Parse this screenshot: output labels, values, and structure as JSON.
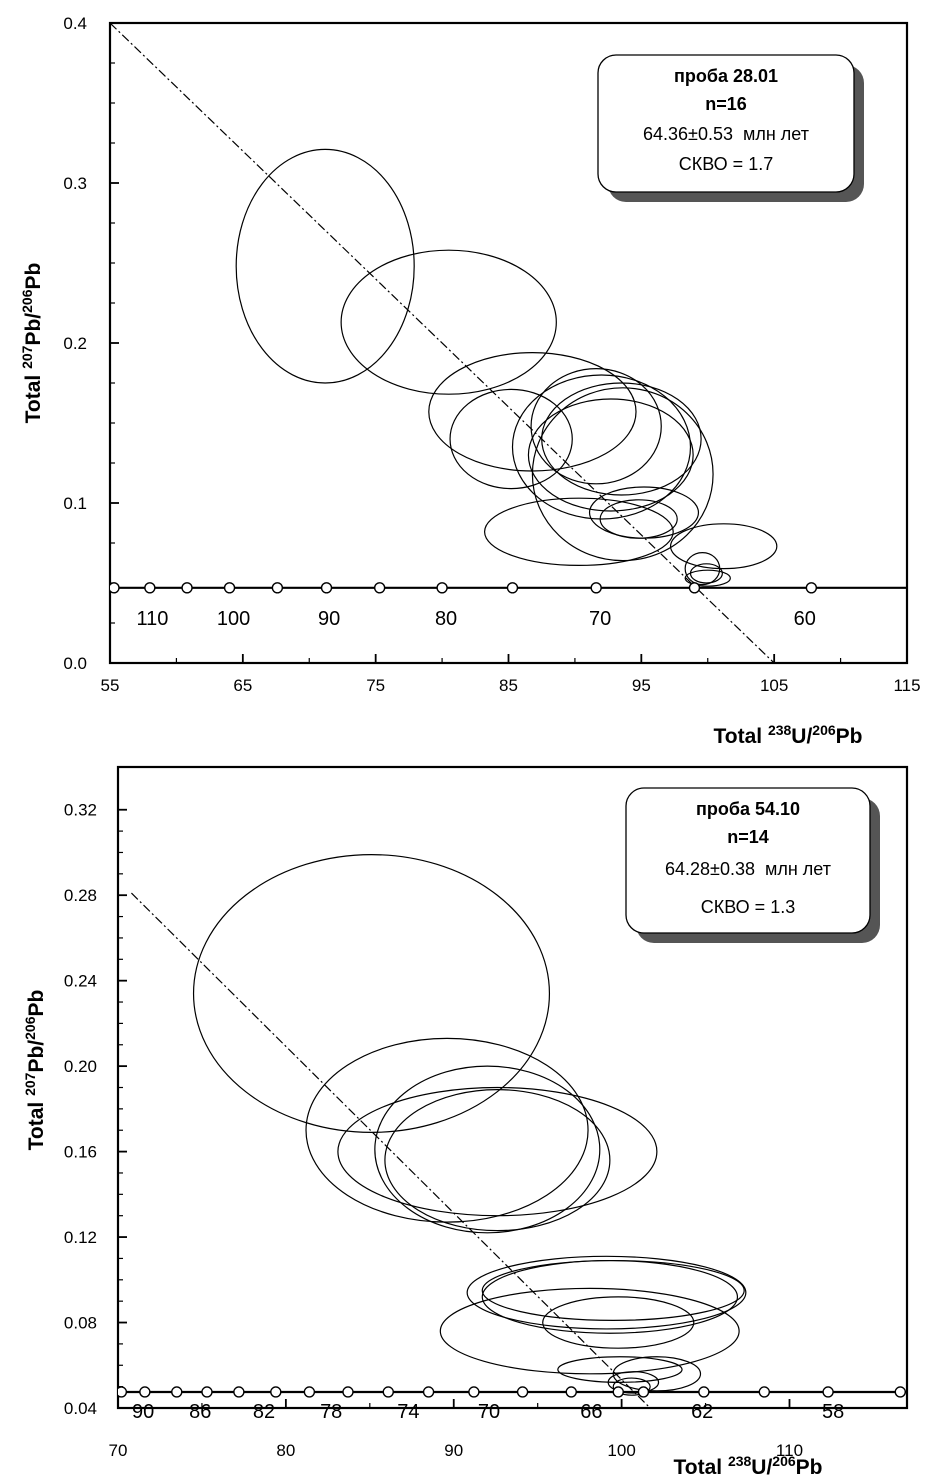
{
  "chart_data": [
    {
      "type": "scatter",
      "xlabel": "Total 238U/206Pb",
      "ylabel": "Total 207Pb/206Pb",
      "xlim": [
        55,
        115
      ],
      "ylim": [
        0.0,
        0.4
      ],
      "x_ticks": [
        55,
        65,
        75,
        85,
        95,
        105,
        115
      ],
      "x_tick_labels": [
        "55",
        "65",
        "75",
        "85",
        "95",
        "105",
        "115"
      ],
      "y_ticks": [
        0.0,
        0.1,
        0.2,
        0.3,
        0.4
      ],
      "y_tick_labels": [
        "0.0",
        "0.1",
        "0.2",
        "0.3",
        "0.4"
      ],
      "info_box": {
        "sample": "проба 28.01",
        "n": "n=16",
        "age": "64.36±0.53",
        "age_unit": "млн лет",
        "mswd": "СКВО = 1.7"
      },
      "regression_line": {
        "x": [
          55,
          105
        ],
        "y": [
          0.4,
          0.0
        ]
      },
      "concordia_y": 0.047,
      "concordia_marker_x": [
        55.3,
        58,
        60.8,
        64,
        67.6,
        71.3,
        75.3,
        80,
        85.3,
        91.6,
        99,
        107.8
      ],
      "age_labels": [
        {
          "label": "110",
          "x": 58.2
        },
        {
          "label": "100",
          "x": 64.3
        },
        {
          "label": "90",
          "x": 71.5
        },
        {
          "label": "80",
          "x": 80.3
        },
        {
          "label": "70",
          "x": 91.9
        },
        {
          "label": "60",
          "x": 107.3
        }
      ],
      "age_label_y": 0.03,
      "error_ellipses": [
        {
          "x": 71.2,
          "y": 0.248,
          "rx": 6.7,
          "ry": 0.073
        },
        {
          "x": 80.5,
          "y": 0.213,
          "rx": 8.1,
          "ry": 0.045
        },
        {
          "x": 86.8,
          "y": 0.157,
          "rx": 7.8,
          "ry": 0.037
        },
        {
          "x": 85.2,
          "y": 0.14,
          "rx": 4.6,
          "ry": 0.031
        },
        {
          "x": 91.6,
          "y": 0.148,
          "rx": 4.9,
          "ry": 0.036
        },
        {
          "x": 93.5,
          "y": 0.14,
          "rx": 6.0,
          "ry": 0.035
        },
        {
          "x": 92.7,
          "y": 0.13,
          "rx": 6.2,
          "ry": 0.035
        },
        {
          "x": 93.6,
          "y": 0.118,
          "rx": 6.8,
          "ry": 0.054
        },
        {
          "x": 92.0,
          "y": 0.135,
          "rx": 6.7,
          "ry": 0.045
        },
        {
          "x": 90.3,
          "y": 0.082,
          "rx": 7.1,
          "ry": 0.021
        },
        {
          "x": 94.8,
          "y": 0.09,
          "rx": 2.9,
          "ry": 0.012
        },
        {
          "x": 95.2,
          "y": 0.094,
          "rx": 4.1,
          "ry": 0.016
        },
        {
          "x": 101.2,
          "y": 0.073,
          "rx": 4.0,
          "ry": 0.014
        },
        {
          "x": 99.6,
          "y": 0.059,
          "rx": 1.3,
          "ry": 0.01
        },
        {
          "x": 100.0,
          "y": 0.053,
          "rx": 1.7,
          "ry": 0.005
        },
        {
          "x": 99.9,
          "y": 0.056,
          "rx": 1.2,
          "ry": 0.006
        }
      ]
    },
    {
      "type": "scatter",
      "xlabel": "Total 238U/206Pb",
      "ylabel": "Total 207Pb/206Pb",
      "xlim": [
        70,
        117
      ],
      "ylim": [
        0.04,
        0.34
      ],
      "x_ticks": [
        70,
        80,
        90,
        100,
        110
      ],
      "x_tick_labels": [
        "70",
        "80",
        "90",
        "100",
        "110"
      ],
      "y_ticks": [
        0.04,
        0.08,
        0.12,
        0.16,
        0.2,
        0.24,
        0.28,
        0.32
      ],
      "y_tick_labels": [
        "0.04",
        "0.08",
        "0.12",
        "0.16",
        "0.20",
        "0.24",
        "0.28",
        "0.32"
      ],
      "info_box": {
        "sample": "проба 54.10",
        "n": "n=14",
        "age": "64.28±0.38",
        "age_unit": "млн лет",
        "mswd": "СКВО = 1.3"
      },
      "regression_line": {
        "x": [
          70.8,
          101.7
        ],
        "y": [
          0.281,
          0.04
        ]
      },
      "concordia_y": 0.0475,
      "concordia_marker_x": [
        70.2,
        71.6,
        73.5,
        75.3,
        77.2,
        79.4,
        81.4,
        83.7,
        86.1,
        88.5,
        91.2,
        94.1,
        97.0,
        99.8,
        101.3,
        104.9,
        108.5,
        112.3,
        116.6
      ],
      "age_labels": [
        {
          "label": "90",
          "x": 71.5
        },
        {
          "label": "86",
          "x": 74.9
        },
        {
          "label": "82",
          "x": 78.7
        },
        {
          "label": "78",
          "x": 82.7
        },
        {
          "label": "74",
          "x": 87.3
        },
        {
          "label": "70",
          "x": 92.1
        },
        {
          "label": "66",
          "x": 98.2
        },
        {
          "label": "62",
          "x": 104.8
        },
        {
          "label": "58",
          "x": 112.6
        }
      ],
      "age_label_y": 0.04,
      "error_ellipses": [
        {
          "x": 85.1,
          "y": 0.234,
          "rx": 10.6,
          "ry": 0.065
        },
        {
          "x": 89.6,
          "y": 0.17,
          "rx": 8.4,
          "ry": 0.043
        },
        {
          "x": 92.0,
          "y": 0.161,
          "rx": 6.7,
          "ry": 0.039
        },
        {
          "x": 92.6,
          "y": 0.16,
          "rx": 9.5,
          "ry": 0.03
        },
        {
          "x": 92.6,
          "y": 0.156,
          "rx": 6.7,
          "ry": 0.033
        },
        {
          "x": 99.1,
          "y": 0.094,
          "rx": 8.3,
          "ry": 0.017
        },
        {
          "x": 99.5,
          "y": 0.095,
          "rx": 7.8,
          "ry": 0.014
        },
        {
          "x": 99.3,
          "y": 0.092,
          "rx": 7.6,
          "ry": 0.017
        },
        {
          "x": 98.1,
          "y": 0.076,
          "rx": 8.9,
          "ry": 0.02
        },
        {
          "x": 99.8,
          "y": 0.08,
          "rx": 4.5,
          "ry": 0.012
        },
        {
          "x": 99.9,
          "y": 0.058,
          "rx": 3.7,
          "ry": 0.006
        },
        {
          "x": 102.1,
          "y": 0.056,
          "rx": 2.6,
          "ry": 0.008
        },
        {
          "x": 100.7,
          "y": 0.052,
          "rx": 1.5,
          "ry": 0.005
        },
        {
          "x": 100.6,
          "y": 0.05,
          "rx": 1.1,
          "ry": 0.004
        }
      ]
    }
  ]
}
